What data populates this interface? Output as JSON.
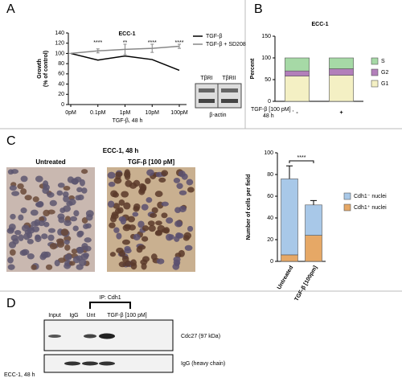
{
  "panel_letters": [
    "A",
    "B",
    "C",
    "D"
  ],
  "chart_data": [
    {
      "type": "line",
      "title": "ECC-1",
      "ylabel": [
        "Growth",
        "(% of control)"
      ],
      "xlabel": "TGF-β, 48 h",
      "categories": [
        "0pM",
        "0.1pM",
        "1pM",
        "10pM",
        "100pM"
      ],
      "series": [
        {
          "name": "TGF-β",
          "color": "#000000",
          "values": [
            100,
            87,
            95,
            88,
            67
          ]
        },
        {
          "name": "TGF-β + SD208",
          "color": "#888888",
          "values": [
            100,
            105,
            108,
            110,
            114
          ],
          "errors": [
            0,
            4,
            10,
            8,
            4
          ]
        }
      ],
      "significance": [
        null,
        "****",
        "**",
        "****",
        "****"
      ],
      "ylim": [
        0,
        140
      ],
      "yticks": [
        0,
        20,
        40,
        60,
        80,
        100,
        120,
        140
      ],
      "legend": "upper right"
    },
    {
      "type": "stacked_bar",
      "title": "ECC-1",
      "ylabel": [
        "Percent"
      ],
      "xlabel": [
        "TGF-β [100 pM] ,",
        "48 h"
      ],
      "categories": [
        "-",
        "+"
      ],
      "series": [
        {
          "name": "G1",
          "color": "#f4f0c4",
          "values": [
            58,
            60
          ]
        },
        {
          "name": "G2",
          "color": "#b27fba",
          "values": [
            12,
            15
          ]
        },
        {
          "name": "S",
          "color": "#a6d9a6",
          "values": [
            30,
            25
          ]
        }
      ],
      "ylim": [
        0,
        150
      ],
      "yticks": [
        0,
        50,
        100,
        150
      ],
      "legend": "right"
    },
    {
      "type": "stacked_bar",
      "ylabel": [
        "Number of cells per field"
      ],
      "categories": [
        "Untreated",
        "TGF-β [100pm]"
      ],
      "series": [
        {
          "name": "Cdh1⁺ nuclei",
          "color": "#e6a866",
          "values": [
            6,
            24
          ],
          "errors": [
            2,
            2
          ]
        },
        {
          "name": "Cdh1⁻ nuclei",
          "color": "#a8c8e8",
          "values": [
            70,
            28
          ],
          "errors": [
            12,
            4
          ]
        }
      ],
      "significance": "****",
      "ylim": [
        0,
        100
      ],
      "yticks": [
        0,
        20,
        40,
        60,
        80,
        100
      ],
      "legend": "right"
    }
  ],
  "blot_a": {
    "lanes": [
      "TβRI",
      "TβRII"
    ],
    "loading": "β-actin"
  },
  "micrographs": {
    "title": "ECC-1, 48 h",
    "labels": [
      "Untreated",
      "TGF-β [100 pM]"
    ]
  },
  "blot_d": {
    "ip": "IP: Cdh1",
    "lanes": [
      "Input",
      "IgG",
      "Unt",
      "TGF-β [100 pM]"
    ],
    "bands": [
      "Cdc27 (97 kDa)",
      "IgG (heavy chain)"
    ],
    "footer": "ECC-1, 48 h"
  }
}
